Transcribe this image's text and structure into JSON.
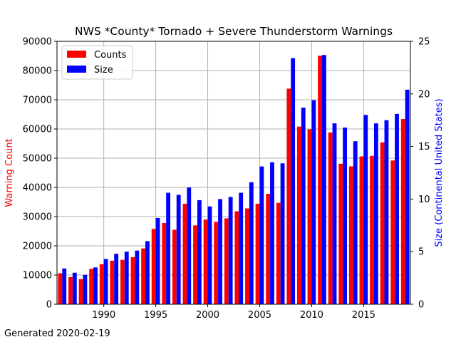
{
  "footer": {
    "generated": "Generated 2020-02-19"
  },
  "chart_data": {
    "type": "bar",
    "title": "NWS *County* Tornado + Severe Thunderstorm Warnings",
    "ylabel": "Warning Count",
    "y2label": "Size (Continental United States)",
    "xlim": [
      1985.5,
      2019.5
    ],
    "ylim": [
      0,
      90000
    ],
    "y2lim": [
      0,
      25
    ],
    "x_ticks": [
      1990,
      1995,
      2000,
      2005,
      2010,
      2015
    ],
    "y_ticks": [
      0,
      10000,
      20000,
      30000,
      40000,
      50000,
      60000,
      70000,
      80000,
      90000
    ],
    "y2_ticks": [
      0,
      5,
      10,
      15,
      20,
      25
    ],
    "grid": true,
    "legend": "top-left",
    "colors": {
      "counts": "#ff0000",
      "size": "#0000ff",
      "ylabel": "#ff0000",
      "y2label": "#0000ff"
    },
    "years": [
      1986,
      1987,
      1988,
      1989,
      1990,
      1991,
      1992,
      1993,
      1994,
      1995,
      1996,
      1997,
      1998,
      1999,
      2000,
      2001,
      2002,
      2003,
      2004,
      2005,
      2006,
      2007,
      2008,
      2009,
      2010,
      2011,
      2012,
      2013,
      2014,
      2015,
      2016,
      2017,
      2018,
      2019
    ],
    "series": [
      {
        "name": "Counts",
        "axis": "left",
        "values": [
          10600,
          9300,
          8600,
          12100,
          13700,
          14900,
          15200,
          16100,
          19100,
          25800,
          27800,
          25500,
          34400,
          27000,
          29000,
          28200,
          29400,
          31800,
          32800,
          34400,
          37800,
          34700,
          73800,
          60800,
          59900,
          85100,
          58800,
          48100,
          47200,
          50600,
          50800,
          55400,
          49200,
          63400
        ]
      },
      {
        "name": "Size",
        "axis": "right",
        "values": [
          3.4,
          3.0,
          2.8,
          3.5,
          4.3,
          4.8,
          5.0,
          5.1,
          6.0,
          8.2,
          10.6,
          10.4,
          11.1,
          9.9,
          9.3,
          10.0,
          10.2,
          10.6,
          11.6,
          13.1,
          13.5,
          13.4,
          23.4,
          18.7,
          19.4,
          23.7,
          17.2,
          16.8,
          15.5,
          18.0,
          17.2,
          17.5,
          18.1,
          20.4
        ]
      }
    ]
  }
}
